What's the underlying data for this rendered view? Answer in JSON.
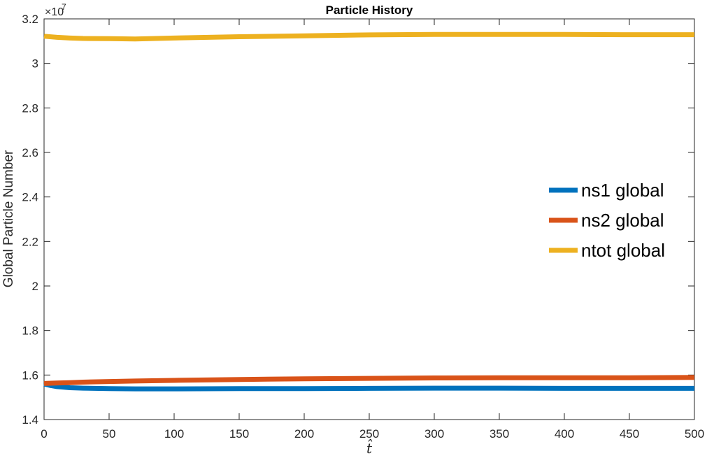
{
  "chart_data": {
    "type": "line",
    "title": "Particle History",
    "xlabel": "t̂",
    "ylabel": "Global Particle Number",
    "y_multiplier_base": "×10",
    "y_multiplier_exp": "7",
    "xlim": [
      0,
      500
    ],
    "ylim": [
      1.4,
      3.2
    ],
    "x_ticks": [
      0,
      50,
      100,
      150,
      200,
      250,
      300,
      350,
      400,
      450,
      500
    ],
    "y_ticks": [
      1.4,
      1.6,
      1.8,
      2,
      2.2,
      2.4,
      2.6,
      2.8,
      3,
      3.2
    ],
    "grid": false,
    "legend_position": "right",
    "series": [
      {
        "name": "ns1 global",
        "color": "#0072BD",
        "x": [
          0,
          5,
          10,
          20,
          30,
          50,
          70,
          100,
          150,
          200,
          250,
          300,
          350,
          400,
          450,
          500
        ],
        "values": [
          1.56,
          1.553,
          1.548,
          1.543,
          1.541,
          1.539,
          1.538,
          1.538,
          1.539,
          1.539,
          1.54,
          1.541,
          1.541,
          1.54,
          1.54,
          1.54
        ]
      },
      {
        "name": "ns2 global",
        "color": "#D95319",
        "x": [
          0,
          10,
          20,
          30,
          50,
          70,
          100,
          150,
          200,
          250,
          300,
          350,
          400,
          450,
          500
        ],
        "values": [
          1.562,
          1.564,
          1.566,
          1.568,
          1.571,
          1.573,
          1.576,
          1.58,
          1.583,
          1.585,
          1.587,
          1.588,
          1.588,
          1.588,
          1.589
        ]
      },
      {
        "name": "ntot global",
        "color": "#EDB120",
        "x": [
          0,
          10,
          20,
          30,
          50,
          70,
          100,
          150,
          200,
          250,
          300,
          350,
          400,
          450,
          500
        ],
        "values": [
          3.122,
          3.117,
          3.114,
          3.112,
          3.111,
          3.11,
          3.114,
          3.12,
          3.124,
          3.128,
          3.13,
          3.13,
          3.13,
          3.129,
          3.129
        ]
      }
    ]
  }
}
